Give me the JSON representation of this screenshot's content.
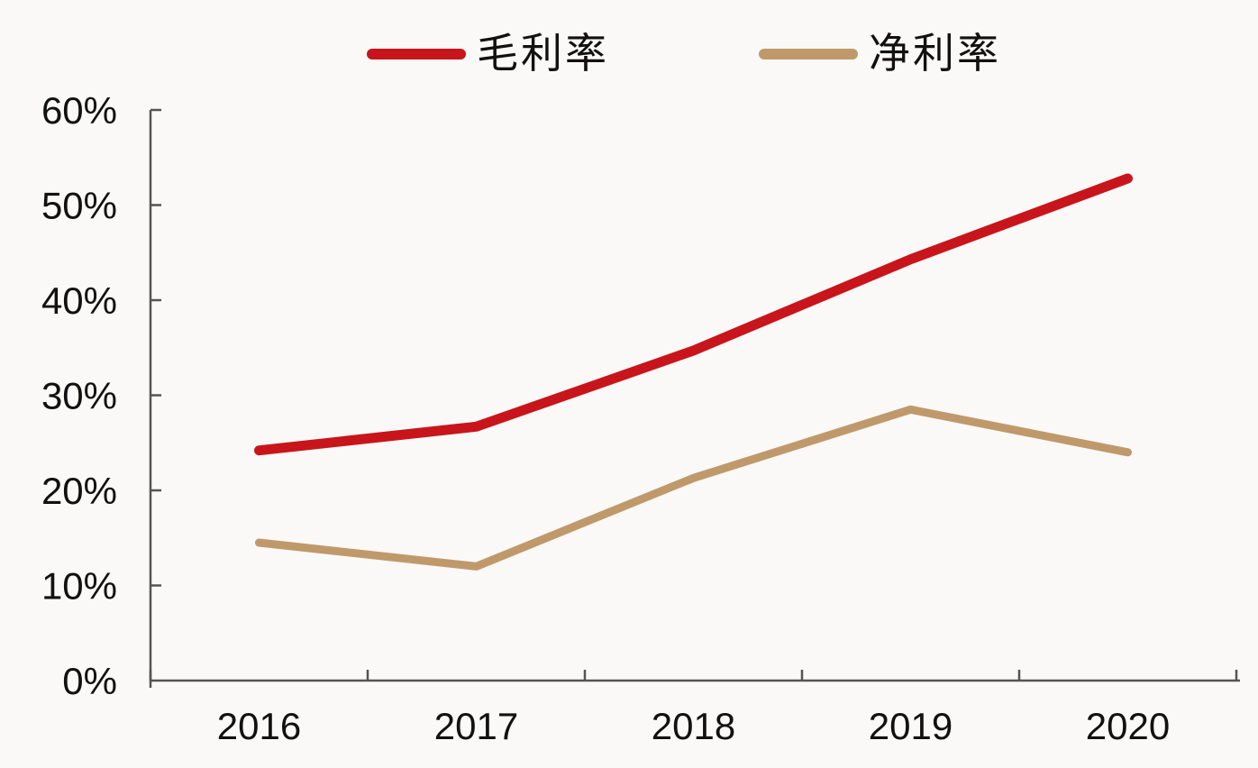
{
  "chart_data": {
    "type": "line",
    "categories": [
      "2016",
      "2017",
      "2018",
      "2019",
      "2020"
    ],
    "series": [
      {
        "name": "毛利率",
        "color": "#C8151B",
        "values": [
          24.2,
          26.7,
          34.7,
          44.3,
          52.8
        ]
      },
      {
        "name": "净利率",
        "color": "#C0996B",
        "values": [
          14.5,
          12.0,
          21.3,
          28.5,
          24.0
        ]
      }
    ],
    "title": "",
    "xlabel": "",
    "ylabel": "",
    "ylim": [
      0,
      60
    ],
    "y_tick_values": [
      0,
      10,
      20,
      30,
      40,
      50,
      60
    ],
    "y_tick_labels": [
      "0%",
      "10%",
      "20%",
      "30%",
      "40%",
      "50%",
      "60%"
    ],
    "grid": false,
    "legend_position": "top",
    "axis_color": "#545454",
    "label_color": "#111111",
    "background_color": "#FAF9F7"
  }
}
